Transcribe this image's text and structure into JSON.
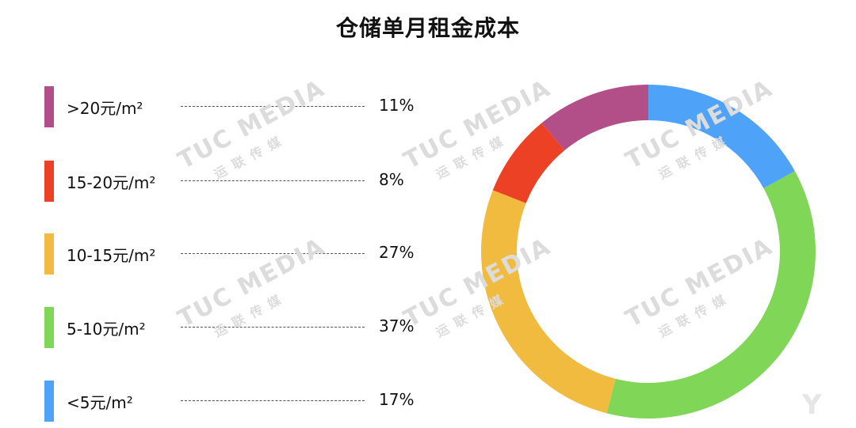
{
  "chart_data": {
    "type": "pie",
    "title": "仓储单月租金成本",
    "categories": [
      ">20元/m²",
      "15-20元/m²",
      "10-15元/m²",
      "5-10元/m²",
      "<5元/m²"
    ],
    "values": [
      11,
      8,
      27,
      37,
      17
    ],
    "value_labels": [
      "11%",
      "8%",
      "27%",
      "37%",
      "17%"
    ],
    "colors": [
      "#b34f88",
      "#ec4124",
      "#f0bb3f",
      "#80d656",
      "#4ea2f7"
    ],
    "donut": true,
    "legend_position": "left"
  },
  "watermark": {
    "text": "TUC MEDIA",
    "subtext": "运 联 传 媒"
  }
}
